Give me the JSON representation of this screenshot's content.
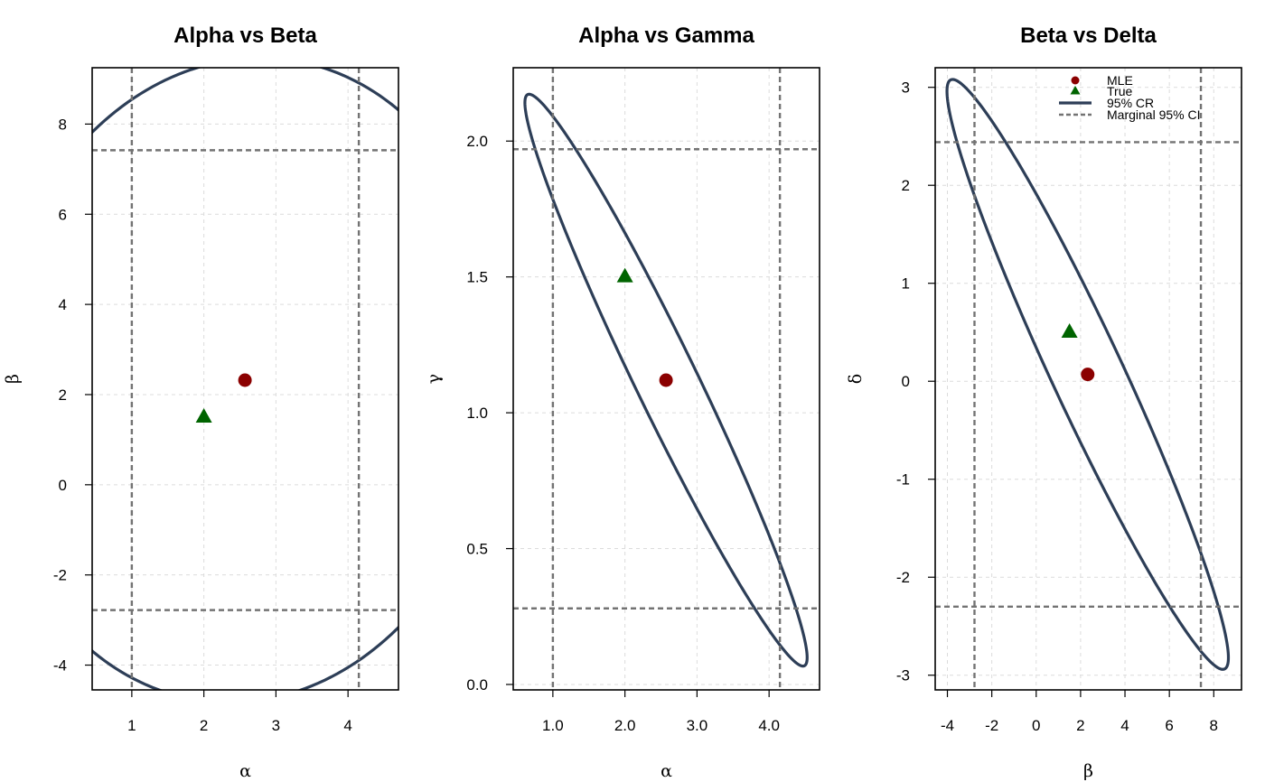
{
  "colors": {
    "region": "#2d3e57",
    "mle": "#8b0000",
    "truth": "#006400",
    "marginal": "#737373",
    "grid": "#dcdcdc",
    "frame": "#000000"
  },
  "legend": {
    "panel": 2,
    "placement": "top-right",
    "items": [
      {
        "label": "MLE",
        "symbol": "circle"
      },
      {
        "label": "True",
        "symbol": "triangle"
      },
      {
        "label": "95% CR",
        "symbol": "solid-line"
      },
      {
        "label": "Marginal 95% CI",
        "symbol": "dashed-line"
      }
    ]
  },
  "chart_data": [
    {
      "type": "scatter",
      "title": "Alpha vs Beta",
      "xlabel": "α",
      "ylabel": "β",
      "xlim": [
        0.45,
        4.7
      ],
      "ylim": [
        -4.55,
        9.25
      ],
      "xticks": [
        1,
        2,
        3,
        4
      ],
      "yticks": [
        -4,
        -2,
        0,
        2,
        4,
        6,
        8
      ],
      "grid": true,
      "mle": {
        "x": 2.57,
        "y": 2.32
      },
      "true": {
        "x": 2.0,
        "y": 1.5
      },
      "marginal_ci": {
        "x": [
          1.0,
          4.15
        ],
        "y": [
          -2.78,
          7.42
        ]
      },
      "region_95": {
        "center": [
          2.57,
          2.32
        ],
        "sd": [
          1.465,
          2.92
        ],
        "rho": 0.06,
        "chi2": 5.991
      }
    },
    {
      "type": "scatter",
      "title": "Alpha vs Gamma",
      "xlabel": "α",
      "ylabel": "γ",
      "xlim": [
        0.45,
        4.7
      ],
      "ylim": [
        -0.02,
        2.27
      ],
      "xticks": [
        1,
        2,
        3,
        4
      ],
      "yticks": [
        0.0,
        0.5,
        1.0,
        1.5,
        2.0
      ],
      "tick_format": 1,
      "grid": true,
      "mle": {
        "x": 2.57,
        "y": 1.12
      },
      "true": {
        "x": 2.0,
        "y": 1.5
      },
      "marginal_ci": {
        "x": [
          1.0,
          4.15
        ],
        "y": [
          0.28,
          1.97
        ]
      },
      "region_95": {
        "center": [
          2.57,
          1.12
        ],
        "sd": [
          0.8,
          0.43
        ],
        "rho": -0.97,
        "chi2": 5.991
      }
    },
    {
      "type": "scatter",
      "title": "Beta vs Delta",
      "xlabel": "β",
      "ylabel": "δ",
      "xlim": [
        -4.55,
        9.25
      ],
      "ylim": [
        -3.15,
        3.2
      ],
      "xticks": [
        -4,
        -2,
        0,
        2,
        4,
        6,
        8
      ],
      "yticks": [
        -3,
        -2,
        -1,
        0,
        1,
        2,
        3
      ],
      "grid": true,
      "mle": {
        "x": 2.32,
        "y": 0.07
      },
      "true": {
        "x": 1.5,
        "y": 0.5
      },
      "marginal_ci": {
        "x": [
          -2.78,
          7.42
        ],
        "y": [
          -2.3,
          2.44
        ]
      },
      "region_95": {
        "center": [
          2.32,
          0.07
        ],
        "sd": [
          2.59,
          1.23
        ],
        "rho": -0.96,
        "chi2": 5.991
      }
    }
  ]
}
